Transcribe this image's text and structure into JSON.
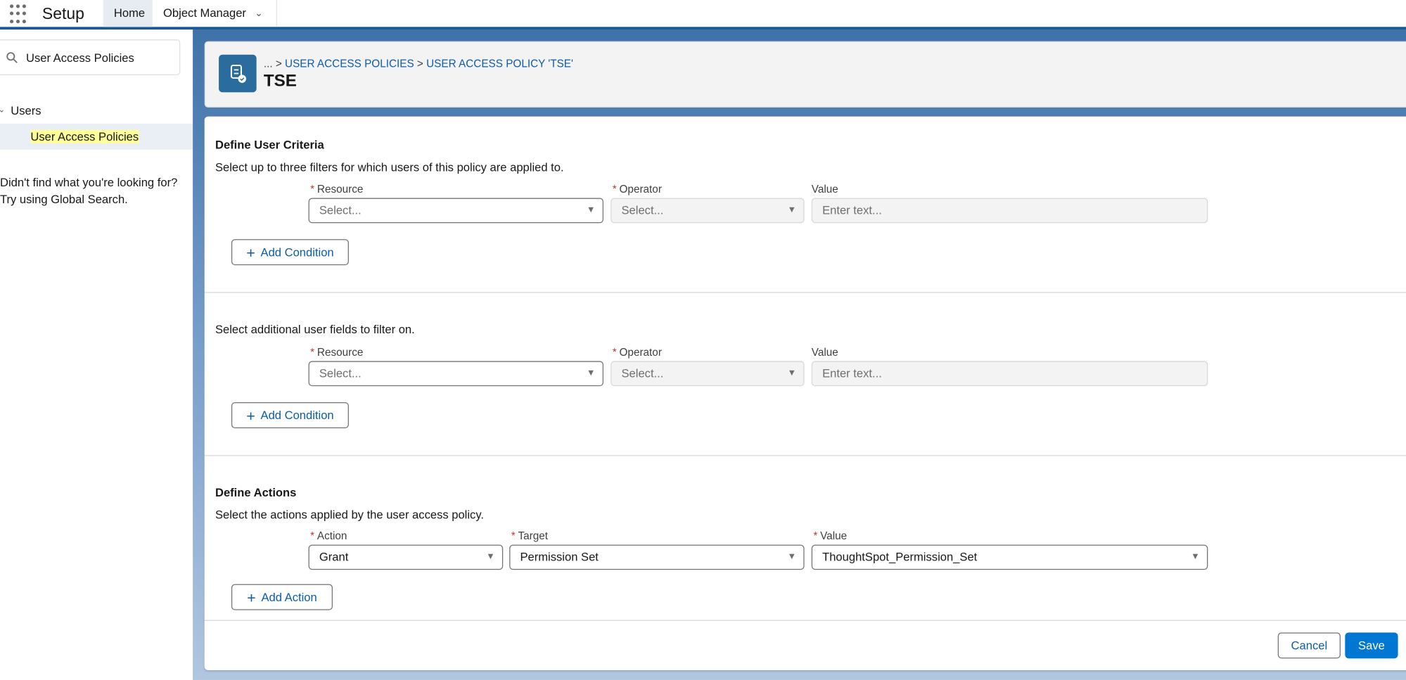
{
  "topbar": {
    "app_name": "Setup",
    "tabs": [
      {
        "label": "Home"
      },
      {
        "label": "Object Manager"
      }
    ]
  },
  "sidebar": {
    "search_value": "User Access Policies",
    "tree": {
      "parent": "Users",
      "child": "User Access Policies"
    },
    "help_line1": "Didn't find what you're looking for?",
    "help_line2": "Try using Global Search."
  },
  "header": {
    "breadcrumb_prefix": "... >",
    "crumb1": "USER ACCESS POLICIES",
    "sep": ">",
    "crumb2": "USER ACCESS POLICY 'TSE'",
    "title": "TSE"
  },
  "criteria": {
    "title": "Define User Criteria",
    "description": "Select up to three filters for which users of this policy are applied to.",
    "resource_label": "Resource",
    "operator_label": "Operator",
    "value_label": "Value",
    "resource_placeholder": "Select...",
    "operator_placeholder": "Select...",
    "value_placeholder": "Enter text...",
    "add_label": "Add Condition"
  },
  "additional": {
    "description": "Select additional user fields to filter on.",
    "resource_label": "Resource",
    "operator_label": "Operator",
    "value_label": "Value",
    "resource_placeholder": "Select...",
    "operator_placeholder": "Select...",
    "value_placeholder": "Enter text...",
    "add_label": "Add Condition"
  },
  "actions": {
    "title": "Define Actions",
    "description": "Select the actions applied by the user access policy.",
    "action_label": "Action",
    "target_label": "Target",
    "value_label": "Value",
    "action_value": "Grant",
    "target_value": "Permission Set",
    "value_value": "ThoughtSpot_Permission_Set",
    "add_label": "Add Action"
  },
  "footer": {
    "cancel": "Cancel",
    "save": "Save"
  },
  "colors": {
    "brand": "#0176d3",
    "link": "#0b5cab",
    "required": "#c23934",
    "highlight": "#ffff99"
  }
}
